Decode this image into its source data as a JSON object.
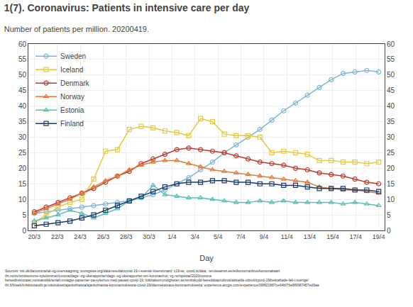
{
  "chart_data": {
    "type": "line",
    "title": "1(7). Coronavirus: Patients in intensive care per day",
    "subtitle": "Number of patients per million. 20200419.",
    "x_label": "Day",
    "annotations": [
      "Sources: sst.dk/da/corona/tal-og-overvaagning; icuregswe.org/data-resultat/covid-19-i-svensk-intensivvard; c19.se; covid.is/data;  terviseamet.ee/et/koroonaviirus/koroonakaart\nthi.no/sv/smittsomme-sykdommer/corona/dags--og-ukerapporter/dags--og-ukerapporter-om-koronavirus; vg.no/spesial/2020/corona\nhelsedirektoratet.no/statistikk/antall-innlagte-pasienter-pa-sykehus-med-pavast-covid-19; folkhalsomyndigheten.se/smittskydd-beredskap/utbrott/aktuella-utbrott/covid-19/bekraftade-fall-i-sverige/\nthl.fi/fi/web/infektiotaudit-ja-rokotukset/ajankohtaista/ajankohtaista-koronaviruksesta-covid-19/tilannekatsaus-koronaviruksesta; experience.arcgis.com/experience/09f821667ce64bf7be6f9987457ed9aa"
    ],
    "x": [
      0,
      1,
      2,
      3,
      4,
      5,
      6,
      7,
      8,
      9,
      10,
      11,
      12,
      13,
      14,
      15,
      16,
      17,
      18,
      19,
      20,
      21,
      22,
      23,
      24,
      25,
      26,
      27,
      28,
      29
    ],
    "xlim": [
      -0.5,
      29.5
    ],
    "xticks": [
      {
        "value": 0,
        "label": "20/3"
      },
      {
        "value": 1.9333333333333333,
        "label": "22/3"
      },
      {
        "value": 3.8666666666666667,
        "label": "24/3"
      },
      {
        "value": 5.8,
        "label": "26/3"
      },
      {
        "value": 7.733333333333333,
        "label": "28/3"
      },
      {
        "value": 9.666666666666666,
        "label": "30/3"
      },
      {
        "value": 11.6,
        "label": "1/4"
      },
      {
        "value": 13.533333333333333,
        "label": "3/4"
      },
      {
        "value": 15.466666666666667,
        "label": "5/4"
      },
      {
        "value": 17.4,
        "label": "7/4"
      },
      {
        "value": 19.333333333333332,
        "label": "9/4"
      },
      {
        "value": 21.266666666666666,
        "label": "11/4"
      },
      {
        "value": 23.2,
        "label": "13/4"
      },
      {
        "value": 25.133333333333333,
        "label": "15/4"
      },
      {
        "value": 27.066666666666666,
        "label": "17/4"
      },
      {
        "value": 29,
        "label": "19/4"
      }
    ],
    "ylim": [
      0,
      60
    ],
    "yticks": [
      0,
      5,
      10,
      15,
      20,
      25,
      30,
      35,
      40,
      45,
      50,
      55,
      60
    ],
    "y2lim": [
      0,
      60
    ],
    "y2ticks": [
      0,
      5,
      10,
      15,
      20,
      25,
      30,
      35,
      40,
      45,
      50,
      55,
      60
    ],
    "grid": true,
    "legend": "upper left",
    "series": [
      {
        "name": "Sweden",
        "color": "#7eb6d4",
        "marker": "circle",
        "values": [
          5.5,
          6.0,
          6.5,
          7.0,
          7.5,
          8.0,
          8.5,
          9.0,
          9.5,
          10.5,
          11.5,
          13.0,
          15.0,
          17.0,
          19.5,
          22.0,
          25.0,
          27.5,
          30.0,
          32.5,
          35.5,
          38.5,
          41.0,
          43.5,
          46.0,
          48.5,
          50.5,
          51.0,
          51.5,
          51.0
        ]
      },
      {
        "name": "Iceland",
        "color": "#e8c840",
        "marker": "square",
        "values": [
          2.5,
          5.0,
          7.5,
          9.0,
          10.0,
          16.5,
          25.5,
          26.0,
          32.5,
          33.5,
          33.0,
          32.0,
          31.5,
          30.5,
          36.0,
          35.0,
          31.0,
          30.5,
          30.5,
          30.0,
          25.0,
          25.5,
          25.0,
          24.5,
          22.5,
          22.5,
          22.0,
          22.0,
          21.5,
          22.0
        ]
      },
      {
        "name": "Denmark",
        "color": "#c0392b",
        "marker": "circle",
        "values": [
          6.0,
          7.5,
          9.0,
          10.5,
          12.0,
          13.5,
          15.5,
          17.5,
          19.0,
          21.5,
          23.0,
          24.5,
          26.0,
          26.5,
          26.0,
          25.5,
          25.0,
          24.0,
          23.0,
          22.0,
          21.5,
          21.0,
          20.0,
          19.5,
          18.5,
          18.0,
          17.5,
          16.5,
          15.5,
          15.0
        ]
      },
      {
        "name": "Norway",
        "color": "#e07b39",
        "marker": "triangle",
        "values": [
          5.5,
          7.0,
          8.5,
          10.0,
          12.0,
          14.0,
          16.0,
          17.5,
          19.5,
          21.0,
          22.0,
          22.5,
          22.5,
          21.5,
          20.5,
          19.5,
          19.0,
          18.5,
          18.0,
          17.5,
          17.0,
          16.5,
          16.0,
          15.5,
          14.0,
          13.5,
          13.0,
          13.0,
          12.5,
          12.0
        ]
      },
      {
        "name": "Estonia",
        "color": "#5bbfb5",
        "marker": "triangle",
        "values": [
          3.0,
          4.0,
          5.0,
          6.5,
          5.5,
          4.0,
          5.5,
          7.0,
          9.5,
          10.5,
          14.5,
          11.5,
          11.0,
          10.5,
          10.5,
          10.0,
          9.5,
          9.0,
          9.0,
          9.5,
          9.0,
          9.5,
          9.0,
          9.0,
          9.0,
          9.0,
          8.5,
          9.0,
          8.5,
          8.0
        ]
      },
      {
        "name": "Finland",
        "color": "#1a3a6b",
        "marker": "square",
        "values": [
          1.5,
          2.0,
          2.5,
          3.0,
          4.0,
          5.0,
          6.5,
          8.0,
          9.5,
          11.0,
          12.5,
          14.0,
          15.0,
          15.5,
          15.5,
          16.0,
          16.0,
          15.5,
          15.5,
          15.0,
          15.0,
          14.5,
          14.5,
          14.0,
          13.5,
          13.5,
          13.5,
          13.0,
          13.0,
          12.5
        ]
      }
    ]
  }
}
